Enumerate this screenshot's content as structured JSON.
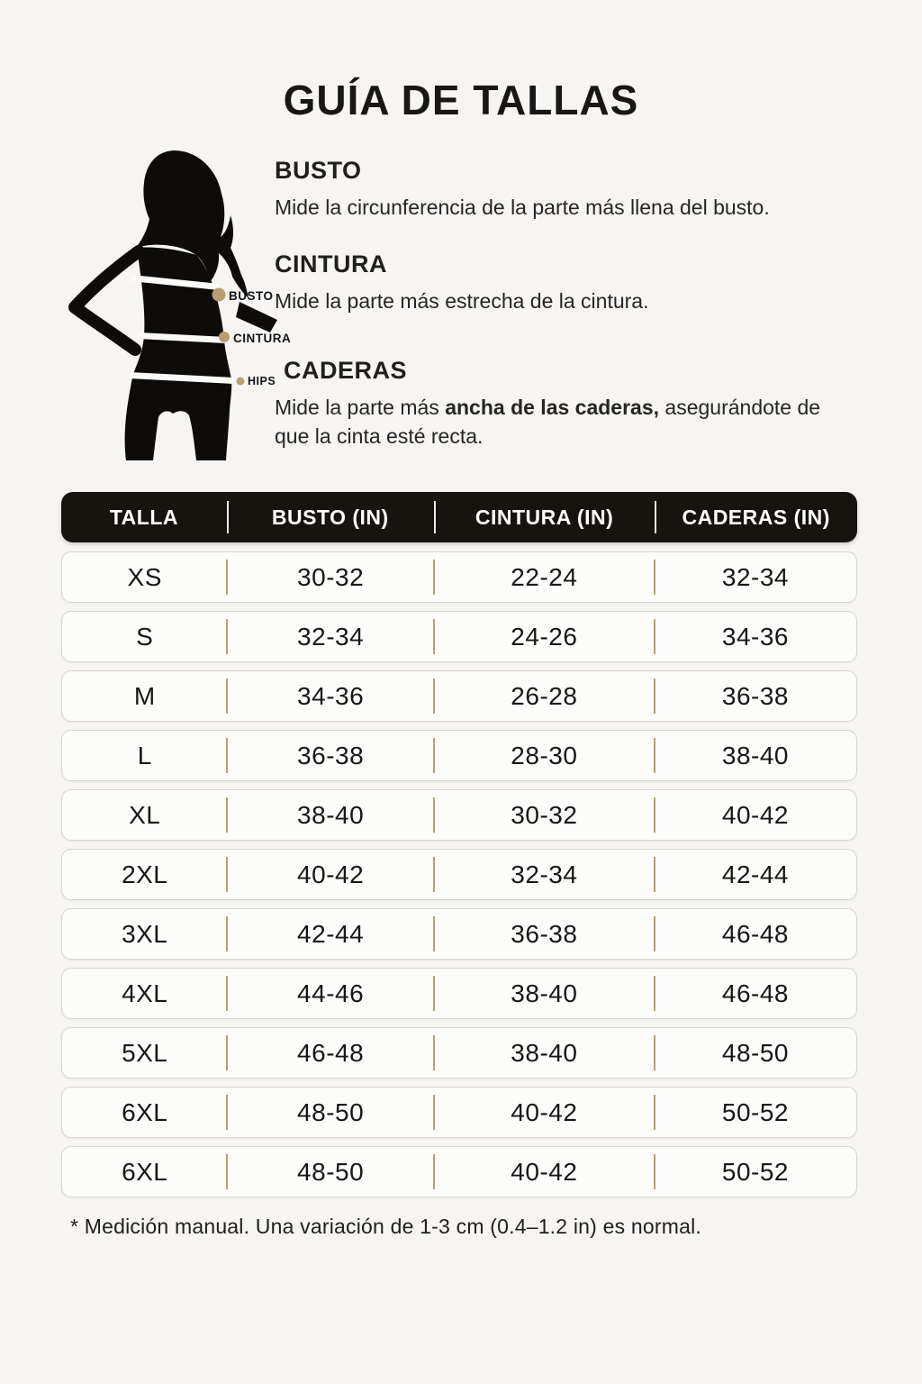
{
  "page": {
    "title": "GUÍA DE TALLAS"
  },
  "figure": {
    "labels": [
      {
        "id": "busto",
        "text": "BUSTO"
      },
      {
        "id": "cintura",
        "text": "CINTURA"
      },
      {
        "id": "hips",
        "text": "HIPS"
      }
    ]
  },
  "sections": [
    {
      "heading": "BUSTO",
      "description": "Mide la circunferencia de la parte más llena del busto."
    },
    {
      "heading": "CINTURA",
      "description": "Mide la parte más estrecha de la cintura."
    },
    {
      "heading": "CADERAS",
      "description_prefix": "Mide la parte más ",
      "description_bold": "ancha de las caderas,",
      "description_suffix": " asegurándote de que la cinta esté recta."
    }
  ],
  "table": {
    "headers": [
      "TALLA",
      "BUSTO (IN)",
      "CINTURA (IN)",
      "CADERAS (IN)"
    ],
    "rows": [
      [
        "XS",
        "30-32",
        "22-24",
        "32-34"
      ],
      [
        "S",
        "32-34",
        "24-26",
        "34-36"
      ],
      [
        "M",
        "34-36",
        "26-28",
        "36-38"
      ],
      [
        "L",
        "36-38",
        "28-30",
        "38-40"
      ],
      [
        "XL",
        "38-40",
        "30-32",
        "40-42"
      ],
      [
        "2XL",
        "40-42",
        "32-34",
        "42-44"
      ],
      [
        "3XL",
        "42-44",
        "36-38",
        "46-48"
      ],
      [
        "4XL",
        "44-46",
        "38-40",
        "46-48"
      ],
      [
        "5XL",
        "46-48",
        "38-40",
        "48-50"
      ],
      [
        "6XL",
        "48-50",
        "40-42",
        "50-52"
      ],
      [
        "6XL",
        "48-50",
        "40-42",
        "50-52"
      ]
    ]
  },
  "footnote": "* Medición manual. Una variación de 1-3 cm (0.4–1.2 in) es normal.",
  "colors": {
    "page_bg": "#f6f5f3",
    "header_bg": "#17140f",
    "header_text": "#ffffff",
    "row_bg": "#fcfcfb",
    "row_border": "#d8d5d1",
    "divider_tan": "#b5a078",
    "dot": "#b99f74",
    "silhouette": "#0d0c0b"
  }
}
